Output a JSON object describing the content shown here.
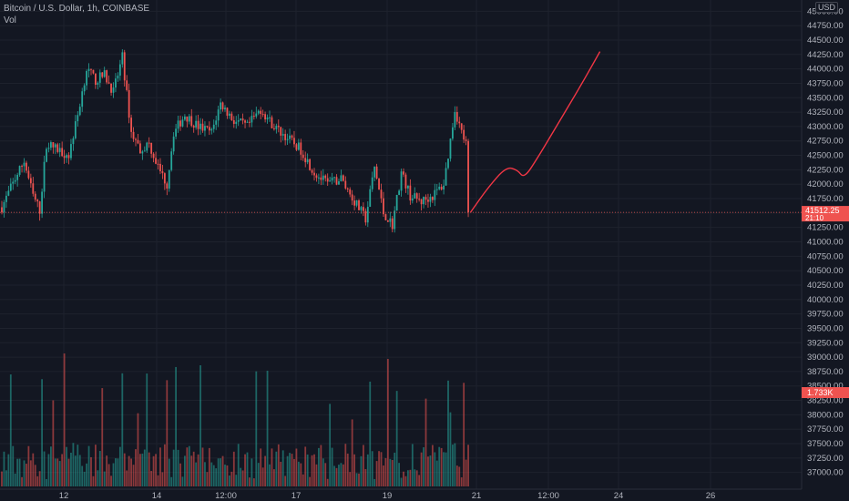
{
  "legend": {
    "symbol": "Bitcoin / U.S. Dollar, 1h, COINBASE",
    "volume_label": "Vol"
  },
  "price_scale": {
    "currency": "USD"
  },
  "last_price": {
    "value": "41512.25",
    "countdown": "21:10"
  },
  "volume_badge": {
    "value": "1.733K"
  },
  "colors": {
    "background": "#131722",
    "up": "#26a69a",
    "down": "#ef5350",
    "drawing": "#f23645",
    "text": "#b2b5be",
    "grid": "#1e222d"
  },
  "chart_data": {
    "type": "candlestick",
    "title": "Bitcoin / U.S. Dollar, 1h, COINBASE",
    "y_ticks": [
      37000,
      37250,
      37500,
      37750,
      38000,
      38250,
      38500,
      38750,
      39000,
      39250,
      39500,
      39750,
      40000,
      40250,
      40500,
      40750,
      41000,
      41250,
      41500,
      41750,
      42000,
      42250,
      42500,
      42750,
      43000,
      43250,
      43500,
      43750,
      44000,
      44250,
      44500,
      44750,
      45000
    ],
    "ylim": [
      36900,
      45100
    ],
    "x_tick_labels": [
      "12",
      "14",
      "12:00",
      "17",
      "19",
      "21",
      "12:00",
      "24",
      "26"
    ],
    "price_path": [
      {
        "i": 0,
        "p": 41600
      },
      {
        "i": 6,
        "p": 42100
      },
      {
        "i": 10,
        "p": 42400
      },
      {
        "i": 14,
        "p": 41800
      },
      {
        "i": 17,
        "p": 41550
      },
      {
        "i": 20,
        "p": 42700
      },
      {
        "i": 25,
        "p": 42600
      },
      {
        "i": 30,
        "p": 42500
      },
      {
        "i": 34,
        "p": 43200
      },
      {
        "i": 38,
        "p": 44000
      },
      {
        "i": 42,
        "p": 43800
      },
      {
        "i": 46,
        "p": 43900
      },
      {
        "i": 50,
        "p": 43600
      },
      {
        "i": 54,
        "p": 44200
      },
      {
        "i": 58,
        "p": 42900
      },
      {
        "i": 62,
        "p": 42600
      },
      {
        "i": 66,
        "p": 42700
      },
      {
        "i": 70,
        "p": 42300
      },
      {
        "i": 74,
        "p": 42000
      },
      {
        "i": 77,
        "p": 42900
      },
      {
        "i": 82,
        "p": 43200
      },
      {
        "i": 88,
        "p": 43000
      },
      {
        "i": 94,
        "p": 42900
      },
      {
        "i": 98,
        "p": 43400
      },
      {
        "i": 104,
        "p": 43100
      },
      {
        "i": 110,
        "p": 43000
      },
      {
        "i": 116,
        "p": 43300
      },
      {
        "i": 122,
        "p": 43000
      },
      {
        "i": 128,
        "p": 42800
      },
      {
        "i": 134,
        "p": 42600
      },
      {
        "i": 140,
        "p": 42200
      },
      {
        "i": 146,
        "p": 42000
      },
      {
        "i": 152,
        "p": 42100
      },
      {
        "i": 158,
        "p": 41700
      },
      {
        "i": 163,
        "p": 41400
      },
      {
        "i": 167,
        "p": 42300
      },
      {
        "i": 171,
        "p": 41500
      },
      {
        "i": 175,
        "p": 41300
      },
      {
        "i": 179,
        "p": 42200
      },
      {
        "i": 183,
        "p": 41800
      },
      {
        "i": 188,
        "p": 41700
      },
      {
        "i": 193,
        "p": 41800
      },
      {
        "i": 198,
        "p": 42000
      },
      {
        "i": 200,
        "p": 42500
      },
      {
        "i": 203,
        "p": 43300
      },
      {
        "i": 206,
        "p": 42900
      },
      {
        "i": 208,
        "p": 42700
      },
      {
        "i": 209,
        "p": 41512
      }
    ],
    "drawing": {
      "type": "freehand",
      "points": [
        [
          210,
          41512
        ],
        [
          218,
          41950
        ],
        [
          226,
          42300
        ],
        [
          231,
          42250
        ],
        [
          234,
          42100
        ],
        [
          240,
          42450
        ],
        [
          250,
          43100
        ],
        [
          260,
          43750
        ],
        [
          268,
          44300
        ]
      ]
    }
  }
}
